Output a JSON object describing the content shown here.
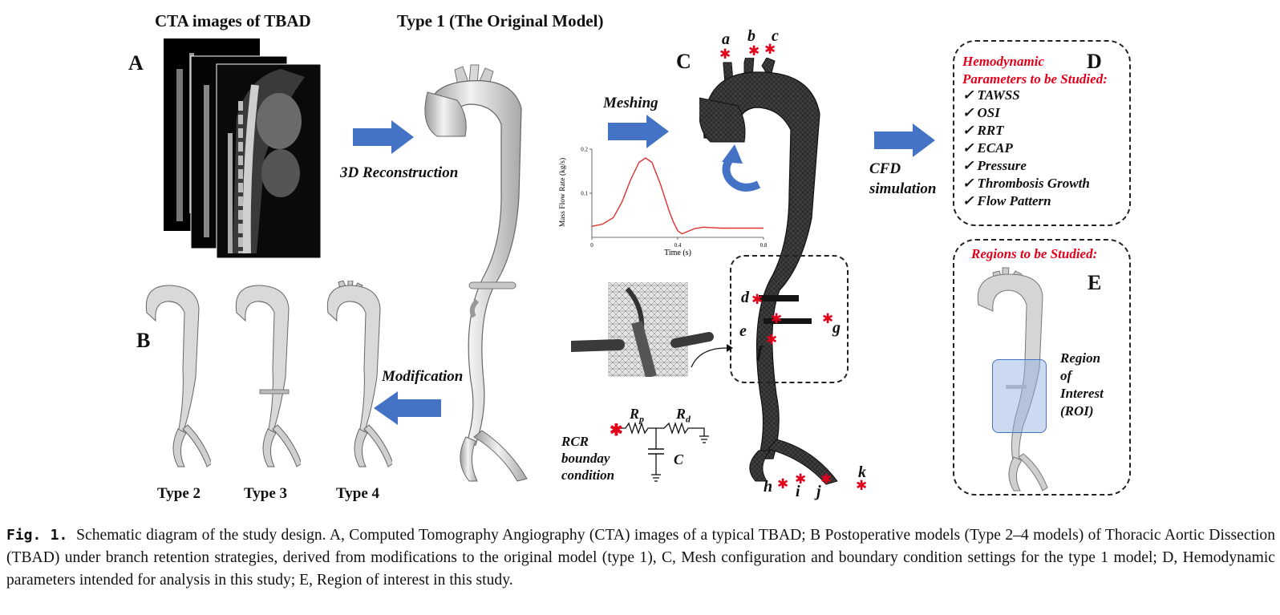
{
  "panels": {
    "A": {
      "letter": "A",
      "title": "CTA images of TBAD"
    },
    "B": {
      "letter": "B",
      "types": [
        "Type 2",
        "Type 3",
        "Type 4"
      ]
    },
    "C": {
      "letter": "C"
    },
    "D": {
      "letter": "D",
      "title_line1": "Hemodynamic",
      "title_line2": "Parameters to be Studied:",
      "items": [
        "TAWSS",
        "OSI",
        "RRT",
        "ECAP",
        "Pressure",
        "Thrombosis Growth",
        "Flow Pattern"
      ],
      "check_mark": "✓"
    },
    "E": {
      "letter": "E",
      "title": "Regions to be Studied:",
      "roi_lines": [
        "Region",
        "of",
        "Interest",
        "(ROI)"
      ]
    }
  },
  "original_model_title": "Type 1 (The Original Model)",
  "steps": {
    "reconstruction": "3D Reconstruction",
    "modification": "Modification",
    "meshing": "Meshing",
    "cfd_line1": "CFD",
    "cfd_line2": "simulation"
  },
  "boundary_points": [
    "a",
    "b",
    "c",
    "d",
    "e",
    "f",
    "g",
    "h",
    "i",
    "j",
    "k"
  ],
  "rcr": {
    "label_lines": [
      "RCR",
      "bounday",
      "condition"
    ],
    "rp": "R",
    "rp_sub": "p",
    "rd": "R",
    "rd_sub": "d",
    "c": "C"
  },
  "chart_data": {
    "type": "line",
    "title": "",
    "xlabel": "Time (s)",
    "ylabel": "Mass Flow Rate (kg/s)",
    "xlim": [
      0,
      0.8
    ],
    "ylim": [
      0,
      0.2
    ],
    "xticks": [
      0,
      0.4,
      0.8
    ],
    "yticks": [
      0.1,
      0.2
    ],
    "xtick_labels": [
      "0",
      "0.4",
      "0.8"
    ],
    "ytick_labels": [
      "0.1",
      "0.2"
    ],
    "line_color": "#e03030",
    "x": [
      0.0,
      0.05,
      0.1,
      0.14,
      0.18,
      0.22,
      0.25,
      0.28,
      0.32,
      0.36,
      0.38,
      0.4,
      0.42,
      0.44,
      0.48,
      0.52,
      0.56,
      0.6,
      0.64,
      0.7,
      0.76,
      0.8
    ],
    "y": [
      0.025,
      0.03,
      0.045,
      0.08,
      0.13,
      0.17,
      0.18,
      0.17,
      0.12,
      0.06,
      0.035,
      0.015,
      0.008,
      0.012,
      0.02,
      0.023,
      0.022,
      0.021,
      0.021,
      0.021,
      0.021,
      0.021
    ]
  },
  "caption": {
    "label": "Fig. 1.",
    "text": "Schematic diagram of the study design. A, Computed Tomography Angiography (CTA) images of a typical TBAD; B Postoperative models (Type 2–4 models) of Thoracic Aortic Dissection (TBAD) under branch retention strategies, derived from modifications to the original model (type 1), C, Mesh configuration and boundary condition settings for the type 1 model; D, Hemodynamic parameters intended for analysis in this study; E, Region of interest in this study."
  },
  "colors": {
    "arrow_blue": "#4472c4",
    "star_red": "#e3001b",
    "roi_fill": "#b4c7e7",
    "mesh_dark": "#2a2a2a"
  }
}
